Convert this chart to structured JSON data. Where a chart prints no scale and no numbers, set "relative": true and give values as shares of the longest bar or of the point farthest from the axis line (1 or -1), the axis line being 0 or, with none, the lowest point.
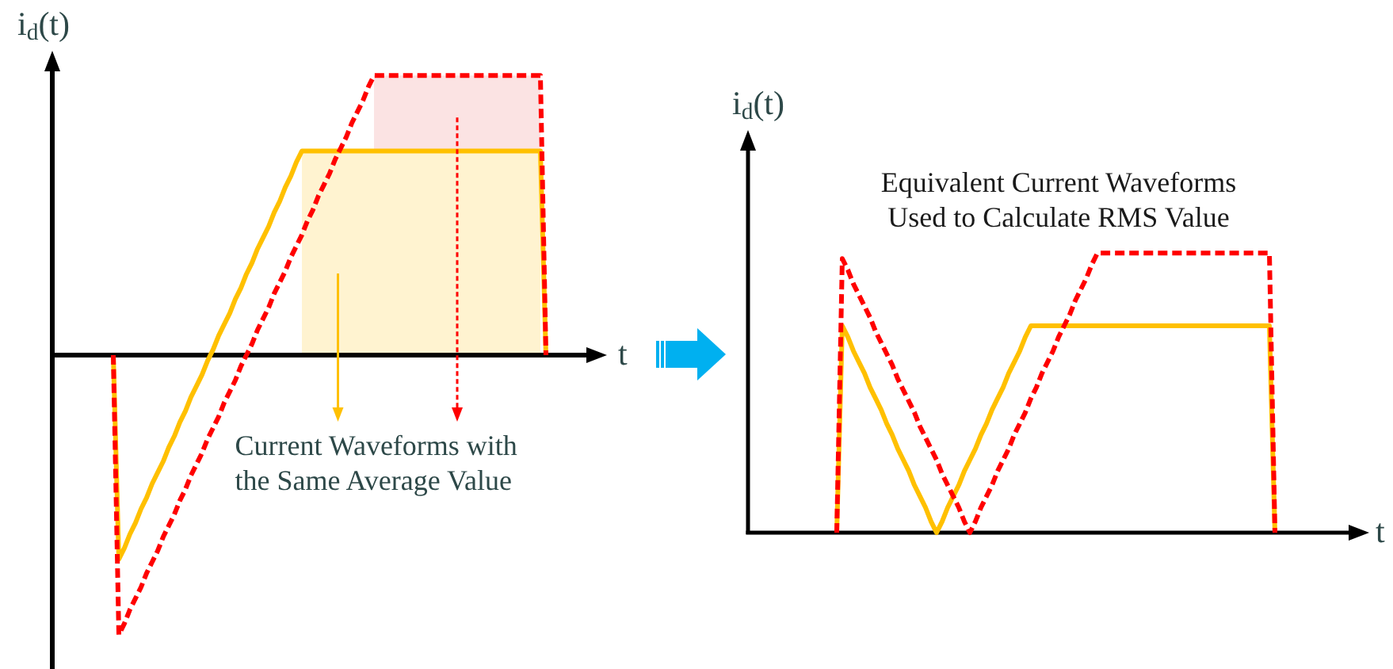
{
  "chart_data": [
    {
      "type": "line",
      "relative": true,
      "ylabel": "i$_{d}$(t)",
      "xlabel": "t",
      "marker": "none",
      "annotations": [
        "Current Waveforms with\nthe Same Average Value"
      ],
      "categories": [
        null,
        null,
        null,
        null,
        null,
        null,
        null,
        null,
        null,
        null,
        null,
        null,
        null,
        null,
        null,
        null,
        null,
        null,
        null,
        null,
        null,
        null,
        null,
        null,
        null,
        null,
        null,
        null,
        null,
        null,
        null,
        null,
        null,
        null,
        null,
        null,
        null,
        null,
        null,
        null,
        null,
        null,
        null,
        null,
        null,
        null,
        null,
        null,
        null,
        null,
        null,
        null,
        null,
        null,
        null,
        null,
        null,
        null,
        null,
        null,
        null,
        null,
        null,
        null,
        null,
        null,
        null,
        null,
        null,
        null,
        null,
        null,
        null,
        null,
        null,
        null,
        null,
        null,
        null,
        null,
        null,
        null,
        null,
        null,
        null,
        null,
        null,
        null,
        null,
        null,
        null,
        null,
        null,
        null,
        null,
        null,
        null,
        null,
        null,
        null,
        null
      ],
      "series": [
        {
          "color": "#ffc000",
          "line_style": "solid",
          "values": [
            null,
            null,
            null,
            null,
            null,
            null,
            null,
            null,
            null,
            null,
            null,
            0,
            -0.73,
            -0.69,
            -0.64,
            -0.6,
            -0.55,
            -0.51,
            -0.46,
            -0.42,
            -0.38,
            -0.33,
            -0.29,
            -0.24,
            -0.2,
            -0.15,
            -0.11,
            -0.07,
            -0.02,
            0.02,
            0.07,
            0.11,
            0.15,
            0.2,
            0.24,
            0.29,
            0.33,
            0.38,
            0.42,
            0.46,
            0.51,
            0.55,
            0.6,
            0.64,
            0.69,
            0.73,
            0.73,
            0.73,
            0.73,
            0.73,
            0.73,
            0.73,
            0.73,
            0.73,
            0.73,
            0.73,
            0.73,
            0.73,
            0.73,
            0.73,
            0.73,
            0.73,
            0.73,
            0.73,
            0.73,
            0.73,
            0.73,
            0.73,
            0.73,
            0.73,
            0.73,
            0.73,
            0.73,
            0.73,
            0.73,
            0.73,
            0.73,
            0.73,
            0.73,
            0.73,
            0.73,
            0.73,
            0.73,
            0.73,
            0.73,
            0.73,
            0.73,
            0.73,
            0.73,
            0,
            null,
            null,
            null,
            null,
            null,
            null,
            null,
            null,
            null,
            null,
            null
          ]
        },
        {
          "color": "#ff0000",
          "line_style": "dashed",
          "values": [
            null,
            null,
            null,
            null,
            null,
            null,
            null,
            null,
            null,
            null,
            null,
            0,
            -1,
            -0.96,
            -0.91,
            -0.87,
            -0.83,
            -0.78,
            -0.74,
            -0.7,
            -0.65,
            -0.61,
            -0.57,
            -0.52,
            -0.48,
            -0.43,
            -0.39,
            -0.35,
            -0.3,
            -0.26,
            -0.22,
            -0.17,
            -0.13,
            -0.09,
            -0.04,
            0,
            0.04,
            0.09,
            0.13,
            0.17,
            0.22,
            0.26,
            0.3,
            0.35,
            0.39,
            0.43,
            0.48,
            0.52,
            0.57,
            0.61,
            0.65,
            0.7,
            0.74,
            0.78,
            0.83,
            0.87,
            0.91,
            0.96,
            1,
            1,
            1,
            1,
            1,
            1,
            1,
            1,
            1,
            1,
            1,
            1,
            1,
            1,
            1,
            1,
            1,
            1,
            1,
            1,
            1,
            1,
            1,
            1,
            1,
            1,
            1,
            1,
            1,
            1,
            1,
            0,
            null,
            null,
            null,
            null,
            null,
            null,
            null,
            null,
            null,
            null,
            null
          ]
        },
        {
          "type": "area",
          "color": "#fff3d0",
          "values": [
            null,
            null,
            null,
            null,
            null,
            null,
            null,
            null,
            null,
            null,
            null,
            null,
            null,
            null,
            null,
            null,
            null,
            null,
            null,
            null,
            null,
            null,
            null,
            null,
            null,
            null,
            null,
            null,
            null,
            null,
            null,
            null,
            null,
            null,
            null,
            null,
            null,
            null,
            null,
            null,
            null,
            null,
            null,
            null,
            null,
            0.73,
            0.73,
            0.73,
            0.73,
            0.73,
            0.73,
            0.73,
            0.73,
            0.73,
            0.73,
            0.73,
            0.73,
            0.73,
            0.73,
            0.73,
            0.73,
            0.73,
            0.73,
            0.73,
            0.73,
            0.73,
            0.73,
            0.73,
            0.73,
            0.73,
            0.73,
            0.73,
            0.73,
            0.73,
            0.73,
            0.73,
            0.73,
            0.73,
            0.73,
            0.73,
            0.73,
            0.73,
            0.73,
            0.73,
            0.73,
            0.73,
            0.73,
            0.73,
            0.73,
            null,
            null,
            null,
            null,
            null,
            null,
            null,
            null,
            null,
            null,
            null,
            null
          ]
        },
        {
          "type": "area",
          "color": "#fbe3e3",
          "values": [
            null,
            null,
            null,
            null,
            null,
            null,
            null,
            null,
            null,
            null,
            null,
            null,
            null,
            null,
            null,
            null,
            null,
            null,
            null,
            null,
            null,
            null,
            null,
            null,
            null,
            null,
            null,
            null,
            null,
            null,
            null,
            null,
            null,
            null,
            null,
            null,
            null,
            null,
            null,
            null,
            null,
            null,
            null,
            null,
            null,
            null,
            null,
            null,
            null,
            null,
            null,
            null,
            null,
            null,
            null,
            null,
            null,
            null,
            1,
            1,
            1,
            1,
            1,
            1,
            1,
            1,
            1,
            1,
            1,
            1,
            1,
            1,
            1,
            1,
            1,
            1,
            1,
            1,
            1,
            1,
            1,
            1,
            1,
            1,
            1,
            1,
            1,
            1,
            1,
            null,
            null,
            null,
            null,
            null,
            null,
            null,
            null,
            null,
            null,
            null,
            null
          ]
        }
      ]
    },
    {
      "type": "line",
      "relative": true,
      "ylabel": "i$_{d}$(t)",
      "xlabel": "t",
      "marker": "none",
      "title": "Equivalent Current Waveforms\nUsed to Calculate RMS Value",
      "categories": [
        null,
        null,
        null,
        null,
        null,
        null,
        null,
        null,
        null,
        null,
        null,
        null,
        null,
        null,
        null,
        null,
        null,
        null,
        null,
        null,
        null,
        null,
        null,
        null,
        null,
        null,
        null,
        null,
        null,
        null,
        null,
        null,
        null,
        null,
        null,
        null,
        null,
        null,
        null,
        null,
        null,
        null,
        null,
        null,
        null,
        null,
        null,
        null,
        null,
        null,
        null,
        null,
        null,
        null,
        null,
        null,
        null,
        null,
        null,
        null,
        null,
        null,
        null,
        null,
        null,
        null,
        null,
        null,
        null,
        null,
        null,
        null,
        null,
        null,
        null,
        null,
        null,
        null,
        null,
        null,
        null,
        null,
        null,
        null,
        null,
        null,
        null,
        null,
        null,
        null,
        null,
        null,
        null,
        null,
        null,
        null,
        null,
        null,
        null,
        null,
        null,
        null,
        null,
        null,
        null,
        null,
        null,
        null,
        null,
        null,
        null,
        null,
        null
      ],
      "series": [
        {
          "color": "#ffc000",
          "line_style": "solid",
          "values": [
            null,
            null,
            null,
            null,
            null,
            null,
            null,
            null,
            null,
            null,
            null,
            null,
            null,
            null,
            null,
            null,
            0,
            0.74,
            0.7,
            0.65,
            0.61,
            0.57,
            0.52,
            0.48,
            0.44,
            0.39,
            0.35,
            0.3,
            0.26,
            0.22,
            0.17,
            0.13,
            0.09,
            0.04,
            0,
            0.04,
            0.09,
            0.13,
            0.17,
            0.22,
            0.26,
            0.3,
            0.35,
            0.39,
            0.44,
            0.48,
            0.52,
            0.57,
            0.61,
            0.65,
            0.7,
            0.74,
            0.74,
            0.74,
            0.74,
            0.74,
            0.74,
            0.74,
            0.74,
            0.74,
            0.74,
            0.74,
            0.74,
            0.74,
            0.74,
            0.74,
            0.74,
            0.74,
            0.74,
            0.74,
            0.74,
            0.74,
            0.74,
            0.74,
            0.74,
            0.74,
            0.74,
            0.74,
            0.74,
            0.74,
            0.74,
            0.74,
            0.74,
            0.74,
            0.74,
            0.74,
            0.74,
            0.74,
            0.74,
            0.74,
            0.74,
            0.74,
            0.74,
            0.74,
            0.74,
            0,
            null,
            null,
            null,
            null,
            null,
            null,
            null,
            null,
            null,
            null,
            null,
            null,
            null,
            null,
            null,
            null,
            null
          ]
        },
        {
          "color": "#ff0000",
          "line_style": "dashed",
          "values": [
            null,
            null,
            null,
            null,
            null,
            null,
            null,
            null,
            null,
            null,
            null,
            null,
            null,
            null,
            null,
            null,
            0,
            0.98,
            0.94,
            0.89,
            0.85,
            0.81,
            0.77,
            0.72,
            0.68,
            0.64,
            0.6,
            0.55,
            0.51,
            0.47,
            0.43,
            0.38,
            0.34,
            0.3,
            0.26,
            0.21,
            0.17,
            0.13,
            0.09,
            0.04,
            0,
            0.04,
            0.09,
            0.13,
            0.17,
            0.22,
            0.26,
            0.3,
            0.35,
            0.39,
            0.43,
            0.48,
            0.52,
            0.57,
            0.61,
            0.65,
            0.7,
            0.74,
            0.78,
            0.83,
            0.87,
            0.91,
            0.96,
            1,
            1,
            1,
            1,
            1,
            1,
            1,
            1,
            1,
            1,
            1,
            1,
            1,
            1,
            1,
            1,
            1,
            1,
            1,
            1,
            1,
            1,
            1,
            1,
            1,
            1,
            1,
            1,
            1,
            1,
            1,
            1,
            0,
            null,
            null,
            null,
            null,
            null,
            null,
            null,
            null,
            null,
            null,
            null,
            null,
            null,
            null,
            null,
            null,
            null
          ]
        }
      ]
    }
  ]
}
